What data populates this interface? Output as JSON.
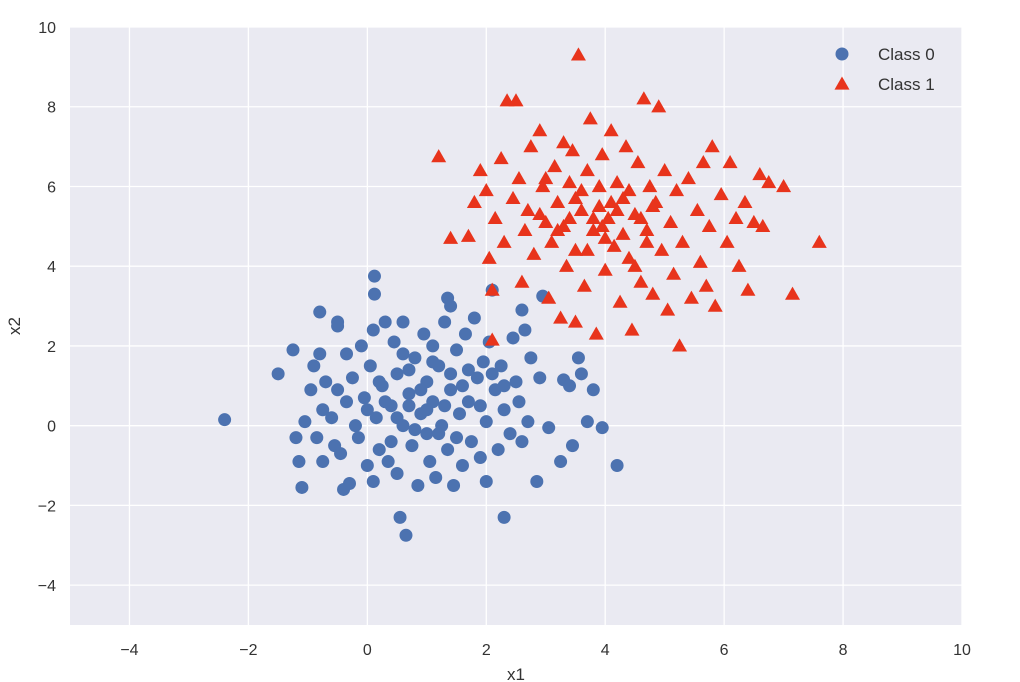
{
  "chart_data": {
    "type": "scatter",
    "title": "",
    "xlabel": "x1",
    "ylabel": "x2",
    "xlim": [
      -5,
      10
    ],
    "ylim": [
      -5,
      10
    ],
    "xticks": [
      -4,
      -2,
      0,
      2,
      4,
      6,
      8,
      10
    ],
    "yticks": [
      -4,
      -2,
      0,
      2,
      4,
      6,
      8,
      10
    ],
    "xtick_labels": [
      "−4",
      "−2",
      "0",
      "2",
      "4",
      "6",
      "8",
      "10"
    ],
    "ytick_labels": [
      "−4",
      "−2",
      "0",
      "2",
      "4",
      "6",
      "8",
      "10"
    ],
    "grid": true,
    "background": "#EAEAF2",
    "legend": {
      "placement": "top-right"
    },
    "series": [
      {
        "name": "Class 0",
        "marker": "circle",
        "color": "#4C72B0",
        "points": [
          [
            -2.4,
            0.15
          ],
          [
            -1.5,
            1.3
          ],
          [
            -1.25,
            1.9
          ],
          [
            -1.2,
            -0.3
          ],
          [
            -1.15,
            -0.9
          ],
          [
            -1.1,
            -1.55
          ],
          [
            -1.05,
            0.1
          ],
          [
            -0.95,
            0.9
          ],
          [
            -0.9,
            1.5
          ],
          [
            -0.85,
            -0.3
          ],
          [
            -0.8,
            2.85
          ],
          [
            -0.8,
            1.8
          ],
          [
            -0.75,
            0.4
          ],
          [
            -0.75,
            -0.9
          ],
          [
            -0.7,
            1.1
          ],
          [
            -0.6,
            0.2
          ],
          [
            -0.55,
            -0.5
          ],
          [
            -0.5,
            2.6
          ],
          [
            -0.5,
            2.5
          ],
          [
            -0.45,
            -0.7
          ],
          [
            -0.4,
            -1.6
          ],
          [
            -0.35,
            0.6
          ],
          [
            -0.35,
            1.8
          ],
          [
            -0.3,
            -1.45
          ],
          [
            -0.25,
            1.2
          ],
          [
            -0.2,
            0.0
          ],
          [
            -0.15,
            -0.3
          ],
          [
            -0.1,
            2.0
          ],
          [
            -0.05,
            0.7
          ],
          [
            0.0,
            -1.0
          ],
          [
            0.05,
            1.5
          ],
          [
            0.1,
            -1.4
          ],
          [
            0.1,
            2.4
          ],
          [
            0.12,
            3.75
          ],
          [
            0.12,
            3.3
          ],
          [
            0.15,
            0.2
          ],
          [
            0.2,
            -0.6
          ],
          [
            0.25,
            1.0
          ],
          [
            0.3,
            2.6
          ],
          [
            0.35,
            -0.9
          ],
          [
            0.4,
            0.5
          ],
          [
            0.45,
            2.1
          ],
          [
            0.5,
            -1.2
          ],
          [
            0.5,
            1.3
          ],
          [
            0.55,
            -2.3
          ],
          [
            0.6,
            0.0
          ],
          [
            0.6,
            2.6
          ],
          [
            0.65,
            -2.75
          ],
          [
            0.7,
            0.8
          ],
          [
            0.75,
            -0.5
          ],
          [
            0.8,
            1.7
          ],
          [
            0.85,
            -1.5
          ],
          [
            0.9,
            0.3
          ],
          [
            0.95,
            2.3
          ],
          [
            1.0,
            -0.2
          ],
          [
            1.0,
            1.1
          ],
          [
            1.05,
            -0.9
          ],
          [
            1.1,
            2.0
          ],
          [
            1.1,
            0.6
          ],
          [
            1.15,
            -1.3
          ],
          [
            1.2,
            1.5
          ],
          [
            1.25,
            0.0
          ],
          [
            1.3,
            2.6
          ],
          [
            1.35,
            -0.6
          ],
          [
            1.35,
            3.2
          ],
          [
            1.4,
            3.0
          ],
          [
            1.4,
            0.9
          ],
          [
            1.45,
            -1.5
          ],
          [
            1.5,
            1.9
          ],
          [
            1.55,
            0.3
          ],
          [
            1.6,
            -1.0
          ],
          [
            1.65,
            2.3
          ],
          [
            1.7,
            0.6
          ],
          [
            1.75,
            -0.4
          ],
          [
            1.8,
            2.7
          ],
          [
            1.85,
            1.2
          ],
          [
            1.9,
            -0.8
          ],
          [
            1.95,
            1.6
          ],
          [
            2.0,
            0.1
          ],
          [
            2.0,
            -1.4
          ],
          [
            2.05,
            2.1
          ],
          [
            2.1,
            3.4
          ],
          [
            2.15,
            0.9
          ],
          [
            2.2,
            -0.6
          ],
          [
            2.25,
            1.5
          ],
          [
            2.3,
            -2.3
          ],
          [
            2.3,
            0.4
          ],
          [
            2.4,
            -0.2
          ],
          [
            2.45,
            2.2
          ],
          [
            2.5,
            1.1
          ],
          [
            2.55,
            0.6
          ],
          [
            2.6,
            -0.4
          ],
          [
            2.6,
            2.9
          ],
          [
            2.65,
            2.4
          ],
          [
            2.7,
            0.1
          ],
          [
            2.75,
            1.7
          ],
          [
            2.85,
            -1.4
          ],
          [
            2.9,
            1.2
          ],
          [
            2.95,
            3.25
          ],
          [
            3.05,
            -0.05
          ],
          [
            3.25,
            -0.9
          ],
          [
            3.3,
            1.15
          ],
          [
            3.4,
            1.0
          ],
          [
            3.45,
            -0.5
          ],
          [
            3.55,
            1.7
          ],
          [
            3.6,
            1.3
          ],
          [
            3.7,
            0.1
          ],
          [
            3.8,
            0.9
          ],
          [
            3.95,
            -0.05
          ],
          [
            4.2,
            -1.0
          ],
          [
            0.3,
            0.6
          ],
          [
            0.7,
            1.4
          ],
          [
            1.2,
            -0.2
          ],
          [
            0.9,
            0.9
          ],
          [
            1.6,
            1.0
          ],
          [
            0.4,
            -0.4
          ],
          [
            1.0,
            0.4
          ],
          [
            0.6,
            1.8
          ],
          [
            1.3,
            0.5
          ],
          [
            0.8,
            -0.1
          ],
          [
            1.7,
            1.4
          ],
          [
            0.2,
            1.1
          ],
          [
            1.1,
            1.6
          ],
          [
            1.5,
            -0.3
          ],
          [
            0.5,
            0.2
          ],
          [
            1.9,
            0.5
          ],
          [
            0.0,
            0.4
          ],
          [
            2.1,
            1.3
          ],
          [
            0.7,
            0.5
          ],
          [
            1.4,
            1.3
          ],
          [
            -0.5,
            0.9
          ],
          [
            2.3,
            1.0
          ]
        ]
      },
      {
        "name": "Class 1",
        "marker": "triangle",
        "color": "#E8341C",
        "points": [
          [
            1.2,
            6.75
          ],
          [
            1.4,
            4.7
          ],
          [
            1.7,
            4.75
          ],
          [
            1.8,
            5.6
          ],
          [
            1.9,
            6.4
          ],
          [
            2.0,
            5.9
          ],
          [
            2.05,
            4.2
          ],
          [
            2.1,
            2.15
          ],
          [
            2.1,
            3.4
          ],
          [
            2.15,
            5.2
          ],
          [
            2.25,
            6.7
          ],
          [
            2.3,
            4.6
          ],
          [
            2.35,
            8.15
          ],
          [
            2.45,
            5.7
          ],
          [
            2.5,
            8.15
          ],
          [
            2.55,
            6.2
          ],
          [
            2.6,
            3.6
          ],
          [
            2.65,
            4.9
          ],
          [
            2.7,
            5.4
          ],
          [
            2.75,
            7.0
          ],
          [
            2.8,
            4.3
          ],
          [
            2.9,
            7.4
          ],
          [
            2.95,
            6.0
          ],
          [
            3.0,
            5.1
          ],
          [
            3.05,
            3.2
          ],
          [
            3.1,
            4.6
          ],
          [
            3.15,
            6.5
          ],
          [
            3.2,
            5.6
          ],
          [
            3.25,
            2.7
          ],
          [
            3.3,
            7.1
          ],
          [
            3.35,
            4.0
          ],
          [
            3.4,
            5.2
          ],
          [
            3.45,
            6.9
          ],
          [
            3.5,
            2.6
          ],
          [
            3.5,
            4.4
          ],
          [
            3.55,
            9.3
          ],
          [
            3.6,
            5.9
          ],
          [
            3.65,
            3.5
          ],
          [
            3.7,
            6.4
          ],
          [
            3.75,
            7.7
          ],
          [
            3.8,
            4.9
          ],
          [
            3.85,
            2.3
          ],
          [
            3.9,
            5.5
          ],
          [
            3.95,
            6.8
          ],
          [
            4.0,
            3.9
          ],
          [
            4.05,
            5.2
          ],
          [
            4.1,
            7.4
          ],
          [
            4.15,
            4.5
          ],
          [
            4.2,
            6.1
          ],
          [
            4.25,
            3.1
          ],
          [
            4.3,
            5.7
          ],
          [
            4.35,
            7.0
          ],
          [
            4.4,
            4.2
          ],
          [
            4.45,
            2.4
          ],
          [
            4.5,
            5.3
          ],
          [
            4.55,
            6.6
          ],
          [
            4.6,
            3.6
          ],
          [
            4.65,
            8.2
          ],
          [
            4.7,
            4.9
          ],
          [
            4.75,
            6.0
          ],
          [
            4.8,
            3.3
          ],
          [
            4.85,
            5.6
          ],
          [
            4.9,
            8.0
          ],
          [
            4.95,
            4.4
          ],
          [
            5.0,
            6.4
          ],
          [
            5.05,
            2.9
          ],
          [
            5.1,
            5.1
          ],
          [
            5.15,
            3.8
          ],
          [
            5.2,
            5.9
          ],
          [
            5.25,
            2.0
          ],
          [
            5.3,
            4.6
          ],
          [
            5.4,
            6.2
          ],
          [
            5.45,
            3.2
          ],
          [
            5.55,
            5.4
          ],
          [
            5.6,
            4.1
          ],
          [
            5.65,
            6.6
          ],
          [
            5.7,
            3.5
          ],
          [
            5.75,
            5.0
          ],
          [
            5.8,
            7.0
          ],
          [
            5.85,
            3.0
          ],
          [
            5.95,
            5.8
          ],
          [
            6.05,
            4.6
          ],
          [
            6.1,
            6.6
          ],
          [
            6.2,
            5.2
          ],
          [
            6.25,
            4.0
          ],
          [
            6.35,
            5.6
          ],
          [
            6.4,
            3.4
          ],
          [
            6.5,
            5.1
          ],
          [
            6.6,
            6.3
          ],
          [
            6.65,
            5.0
          ],
          [
            6.75,
            6.1
          ],
          [
            7.0,
            6.0
          ],
          [
            7.15,
            3.3
          ],
          [
            7.6,
            4.6
          ],
          [
            3.3,
            5.0
          ],
          [
            3.7,
            4.4
          ],
          [
            4.1,
            5.6
          ],
          [
            3.6,
            5.4
          ],
          [
            4.3,
            4.8
          ],
          [
            3.9,
            6.0
          ],
          [
            4.6,
            5.2
          ],
          [
            3.4,
            6.1
          ],
          [
            4.0,
            4.7
          ],
          [
            4.4,
            5.9
          ],
          [
            3.8,
            5.2
          ],
          [
            4.7,
            4.6
          ],
          [
            3.2,
            4.9
          ],
          [
            4.2,
            5.4
          ],
          [
            3.5,
            5.7
          ],
          [
            4.8,
            5.5
          ],
          [
            2.9,
            5.3
          ],
          [
            3.0,
            6.2
          ],
          [
            4.5,
            4.0
          ],
          [
            3.95,
            5.0
          ]
        ]
      }
    ]
  }
}
